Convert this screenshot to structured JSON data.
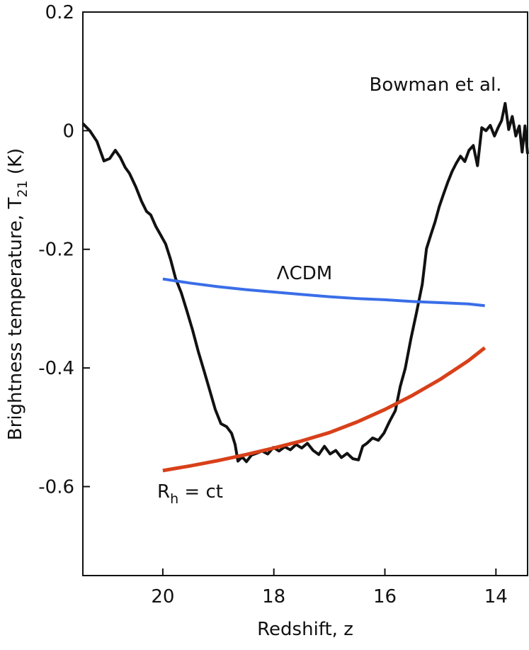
{
  "chart_data": {
    "type": "line",
    "xlabel": "Redshift, z",
    "ylabel": {
      "text": "Brightness temperature, T",
      "sub": "21",
      "tail": " (K)"
    },
    "xlim": [
      21.44,
      13.43
    ],
    "ylim": [
      -0.75,
      0.2
    ],
    "xticks": [
      20,
      18,
      16,
      14
    ],
    "yticks": [
      0.2,
      0,
      -0.2,
      -0.4,
      -0.6
    ],
    "series": [
      {
        "name": "Bowman et al.",
        "color": "#111111",
        "x": [
          21.44,
          21.315,
          21.187,
          21.06,
          20.957,
          20.855,
          20.766,
          20.677,
          20.6,
          20.485,
          20.383,
          20.294,
          20.217,
          20.128,
          20.038,
          19.949,
          19.86,
          19.77,
          19.668,
          19.566,
          19.464,
          19.362,
          19.26,
          19.157,
          19.055,
          18.953,
          18.851,
          18.762,
          18.698,
          18.647,
          18.57,
          18.494,
          18.404,
          18.315,
          18.213,
          18.11,
          18.008,
          17.906,
          17.804,
          17.702,
          17.6,
          17.498,
          17.396,
          17.293,
          17.191,
          17.089,
          16.987,
          16.885,
          16.783,
          16.68,
          16.578,
          16.476,
          16.4,
          16.323,
          16.221,
          16.119,
          16.017,
          15.915,
          15.812,
          15.723,
          15.634,
          15.532,
          15.429,
          15.327,
          15.251,
          15.174,
          15.097,
          15.021,
          14.944,
          14.868,
          14.791,
          14.715,
          14.638,
          14.561,
          14.485,
          14.408,
          14.332,
          14.255,
          14.179,
          14.102,
          14.026,
          13.962,
          13.898,
          13.834,
          13.77,
          13.706,
          13.642,
          13.579,
          13.528,
          13.477,
          13.43
        ],
        "values": [
          0.012,
          0,
          -0.018,
          -0.051,
          -0.047,
          -0.033,
          -0.045,
          -0.062,
          -0.072,
          -0.095,
          -0.119,
          -0.136,
          -0.142,
          -0.161,
          -0.176,
          -0.191,
          -0.217,
          -0.249,
          -0.273,
          -0.304,
          -0.336,
          -0.372,
          -0.404,
          -0.437,
          -0.47,
          -0.494,
          -0.499,
          -0.51,
          -0.529,
          -0.557,
          -0.55,
          -0.558,
          -0.547,
          -0.544,
          -0.54,
          -0.545,
          -0.534,
          -0.54,
          -0.533,
          -0.538,
          -0.529,
          -0.535,
          -0.527,
          -0.539,
          -0.546,
          -0.532,
          -0.545,
          -0.539,
          -0.551,
          -0.544,
          -0.553,
          -0.555,
          -0.532,
          -0.527,
          -0.518,
          -0.522,
          -0.51,
          -0.49,
          -0.472,
          -0.431,
          -0.401,
          -0.351,
          -0.306,
          -0.259,
          -0.199,
          -0.176,
          -0.154,
          -0.128,
          -0.107,
          -0.087,
          -0.069,
          -0.055,
          -0.043,
          -0.052,
          -0.033,
          -0.025,
          -0.059,
          0.005,
          0,
          0.009,
          -0.009,
          0.005,
          0.017,
          0.046,
          0.002,
          0.024,
          -0.009,
          0.008,
          -0.036,
          0.008,
          -0.039
        ]
      },
      {
        "name": "ΛCDM",
        "color": "#3a6ee8",
        "x": [
          20,
          19.5,
          19,
          18.5,
          18,
          17.5,
          17,
          16.5,
          16,
          15.5,
          15,
          14.5,
          14.2
        ],
        "values": [
          -0.25,
          -0.257,
          -0.263,
          -0.268,
          -0.272,
          -0.276,
          -0.28,
          -0.283,
          -0.285,
          -0.288,
          -0.29,
          -0.292,
          -0.295
        ]
      },
      {
        "name": {
          "text": "R",
          "sub": "h",
          "tail": " = ct"
        },
        "color": "#d8401a",
        "x": [
          20,
          19.5,
          19,
          18.5,
          18,
          17.5,
          17,
          16.5,
          16,
          15.5,
          15,
          14.5,
          14.2
        ],
        "values": [
          -0.573,
          -0.565,
          -0.556,
          -0.546,
          -0.535,
          -0.523,
          -0.509,
          -0.491,
          -0.47,
          -0.446,
          -0.419,
          -0.388,
          -0.366
        ]
      }
    ]
  }
}
